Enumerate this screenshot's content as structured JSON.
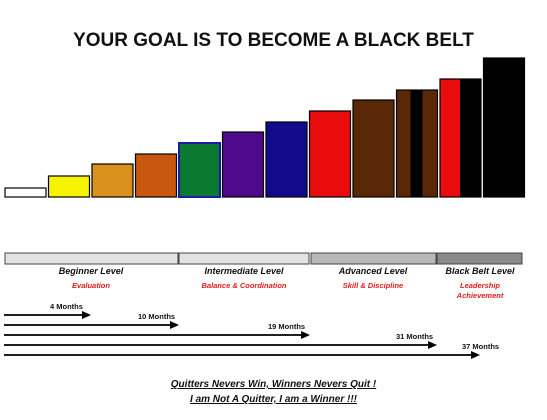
{
  "title": "YOUR GOAL IS TO BECOME A BLACK BELT",
  "belts": [
    {
      "name": "white-belt",
      "fill": "#ffffff",
      "height": 9
    },
    {
      "name": "yellow-belt",
      "fill": "#f7f200",
      "height": 21
    },
    {
      "name": "orange-belt",
      "fill": "#d9901d",
      "height": 33
    },
    {
      "name": "dark-orange-belt",
      "fill": "#c9570f",
      "height": 43
    },
    {
      "name": "green-belt",
      "fill": "#0b7a30",
      "height": 54,
      "stroke": "#1a1aa8"
    },
    {
      "name": "purple-belt",
      "fill": "#4f0a8c",
      "height": 65
    },
    {
      "name": "blue-belt",
      "fill": "#120a8c",
      "height": 75
    },
    {
      "name": "red-belt",
      "fill": "#e80c0c",
      "height": 86
    },
    {
      "name": "brown-belt",
      "fill": "#5a2807",
      "height": 97
    },
    {
      "name": "brown-black-belt",
      "fill": "#5a2807",
      "height": 107,
      "stripe": "#000000"
    },
    {
      "name": "red-black-belt",
      "fill": "#e80c0c",
      "height": 118,
      "half": "#000000"
    },
    {
      "name": "black-belt",
      "fill": "#000000",
      "height": 139
    }
  ],
  "levels": [
    {
      "name": "Beginner Level",
      "sub": "Evaluation",
      "color": "#e2e2e2"
    },
    {
      "name": "Intermediate Level",
      "sub": "Balance & Coordination",
      "color": "#e2e2e2"
    },
    {
      "name": "Advanced Level",
      "sub": "Skill & Discipline",
      "color": "#b8b8b8"
    },
    {
      "name": "Black Belt Level",
      "sub": "Leadership Achievement",
      "color": "#8a8a8a"
    }
  ],
  "durations": [
    {
      "label": "4 Months"
    },
    {
      "label": "10 Months"
    },
    {
      "label": "19 Months"
    },
    {
      "label": "31 Months"
    },
    {
      "label": "37 Months"
    }
  ],
  "footer": {
    "line1": "Quitters Nevers Win, Winners Nevers Quit !",
    "line2": "I am Not A Quitter, I am a Winner !!!"
  }
}
